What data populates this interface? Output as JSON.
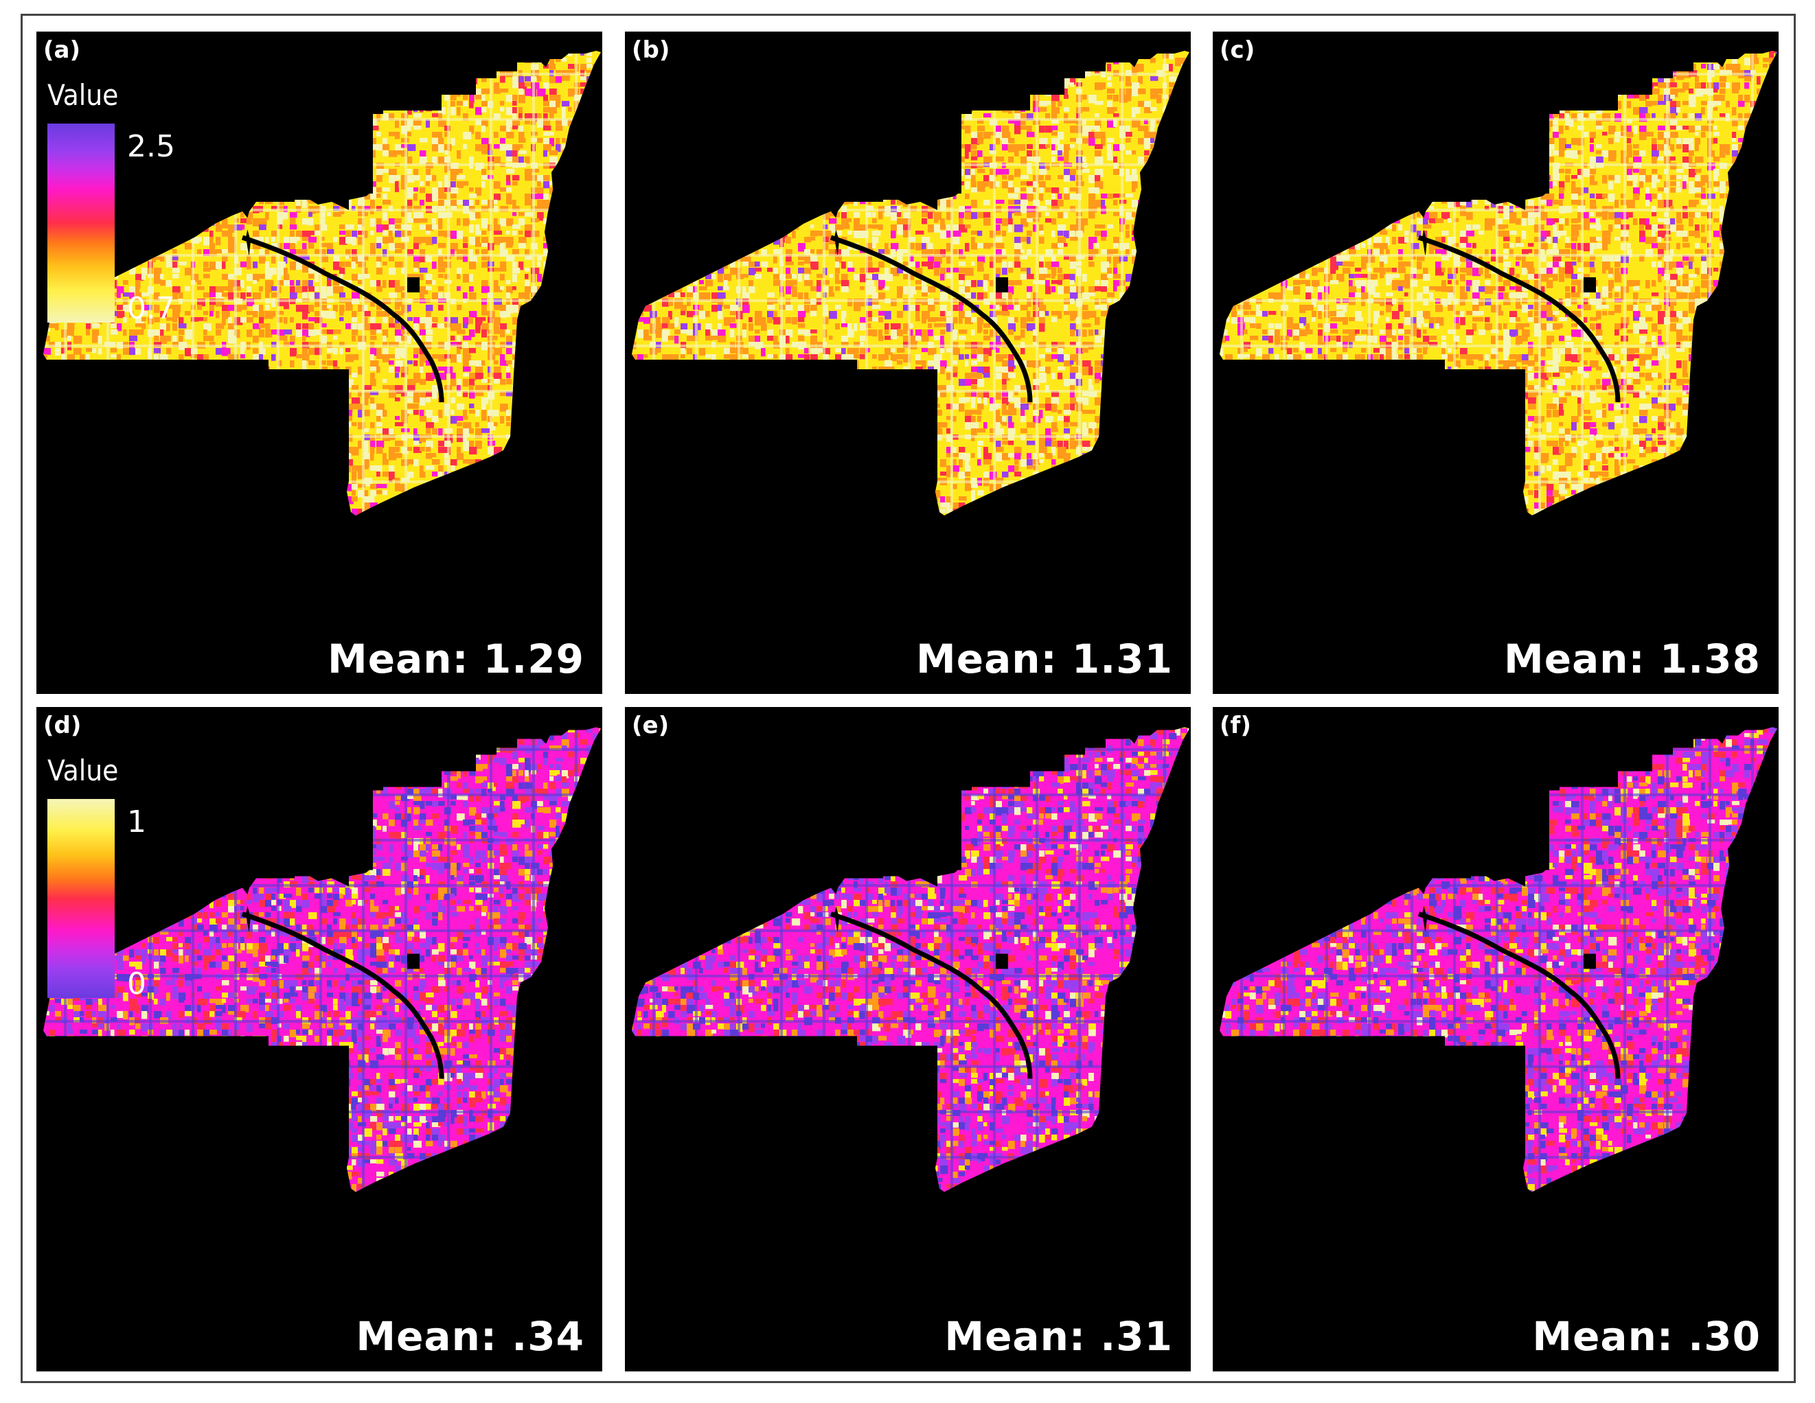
{
  "panels": [
    {
      "id": "a",
      "label": "(a)",
      "mean": "Mean: 1.29",
      "scheme": "cost",
      "legend": {
        "title": "Value",
        "max_label": "2.5",
        "min_label": "0.7"
      }
    },
    {
      "id": "b",
      "label": "(b)",
      "mean": "Mean: 1.31",
      "scheme": "cost"
    },
    {
      "id": "c",
      "label": "(c)",
      "mean": "Mean: 1.38",
      "scheme": "cost"
    },
    {
      "id": "d",
      "label": "(d)",
      "mean": "Mean: .34",
      "scheme": "index",
      "legend": {
        "title": "Value",
        "max_label": "1",
        "min_label": "0"
      }
    },
    {
      "id": "e",
      "label": "(e)",
      "mean": "Mean: .31",
      "scheme": "index"
    },
    {
      "id": "f",
      "label": "(f)",
      "mean": "Mean: .30",
      "scheme": "index"
    }
  ],
  "colors": {
    "background": "#000000",
    "ramp_low": "#f5f5b8",
    "ramp_yellow": "#ffe81a",
    "ramp_orange": "#ff9a1a",
    "ramp_red": "#ff2f4a",
    "ramp_magenta": "#ff19d2",
    "ramp_purple": "#9a3ff0",
    "ramp_violet": "#5a3bd8"
  }
}
